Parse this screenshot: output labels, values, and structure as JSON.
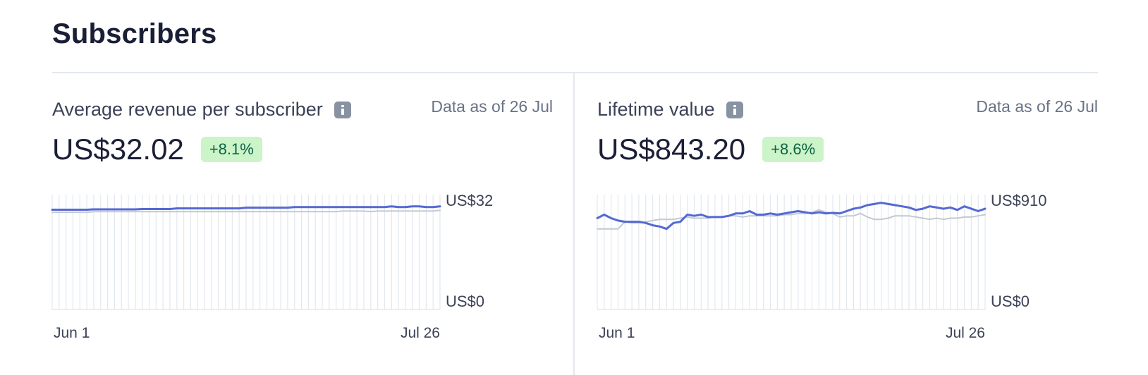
{
  "page": {
    "title": "Subscribers"
  },
  "panels": [
    {
      "title": "Average revenue per subscriber",
      "info_icon": "info-icon",
      "data_as_of": "Data as of 26 Jul",
      "value": "US$32.02",
      "change": "+8.1%",
      "change_color": "#cbf4c9",
      "chart_data": {
        "type": "line",
        "x_start_label": "Jun 1",
        "x_end_label": "Jul 26",
        "y_top_label": "US$32",
        "y_bottom_label": "US$0",
        "ylim": [
          0,
          32
        ],
        "grid": true,
        "series": [
          {
            "color": "#5469d4",
            "values": [
              29.6,
              29.6,
              29.6,
              29.6,
              29.6,
              29.6,
              29.7,
              29.7,
              29.7,
              29.7,
              29.7,
              29.7,
              29.7,
              29.8,
              29.8,
              29.8,
              29.8,
              29.8,
              30.0,
              30.0,
              30.0,
              30.0,
              30.0,
              30.0,
              30.0,
              30.0,
              30.0,
              30.0,
              30.2,
              30.2,
              30.2,
              30.2,
              30.2,
              30.2,
              30.2,
              30.4,
              30.4,
              30.4,
              30.4,
              30.4,
              30.4,
              30.4,
              30.4,
              30.4,
              30.4,
              30.4,
              30.4,
              30.4,
              30.4,
              30.6,
              30.4,
              30.4,
              30.6,
              30.6,
              30.4,
              30.4,
              30.6
            ]
          },
          {
            "color": "#c1c9d2",
            "values": [
              28.8,
              28.8,
              28.8,
              28.8,
              28.8,
              28.8,
              29.0,
              29.0,
              29.0,
              29.0,
              29.0,
              29.0,
              29.0,
              29.0,
              29.0,
              29.0,
              29.0,
              29.0,
              29.0,
              29.0,
              29.0,
              29.0,
              29.0,
              29.0,
              29.0,
              29.0,
              29.0,
              29.0,
              29.0,
              29.0,
              29.0,
              29.0,
              29.0,
              29.0,
              29.0,
              29.0,
              29.0,
              29.0,
              29.0,
              29.0,
              29.0,
              29.0,
              29.2,
              29.2,
              29.2,
              29.2,
              29.0,
              29.2,
              29.2,
              29.2,
              29.2,
              29.2,
              29.2,
              29.2,
              29.2,
              29.2,
              29.4
            ]
          }
        ]
      }
    },
    {
      "title": "Lifetime value",
      "info_icon": "info-icon",
      "data_as_of": "Data as of 26 Jul",
      "value": "US$843.20",
      "change": "+8.6%",
      "change_color": "#cbf4c9",
      "chart_data": {
        "type": "line",
        "x_start_label": "Jun 1",
        "x_end_label": "Jul 26",
        "y_top_label": "US$910",
        "y_bottom_label": "US$0",
        "ylim": [
          0,
          910
        ],
        "grid": true,
        "series": [
          {
            "color": "#5469d4",
            "values": [
              770,
              800,
              770,
              750,
              740,
              740,
              740,
              730,
              710,
              700,
              680,
              730,
              740,
              800,
              790,
              800,
              780,
              780,
              780,
              790,
              810,
              810,
              830,
              800,
              800,
              810,
              800,
              810,
              820,
              830,
              820,
              810,
              820,
              810,
              815,
              810,
              830,
              850,
              860,
              880,
              890,
              900,
              890,
              880,
              870,
              860,
              840,
              850,
              870,
              860,
              850,
              860,
              840,
              870,
              850,
              830,
              850
            ]
          },
          {
            "color": "#c1c9d2",
            "values": [
              680,
              680,
              680,
              680,
              740,
              730,
              730,
              740,
              750,
              760,
              760,
              760,
              770,
              780,
              770,
              770,
              770,
              780,
              780,
              790,
              790,
              780,
              790,
              790,
              790,
              790,
              790,
              800,
              800,
              810,
              810,
              820,
              840,
              820,
              810,
              780,
              790,
              790,
              810,
              780,
              760,
              760,
              770,
              790,
              790,
              790,
              780,
              770,
              760,
              770,
              760,
              770,
              770,
              780,
              780,
              790,
              800
            ]
          }
        ]
      }
    }
  ]
}
